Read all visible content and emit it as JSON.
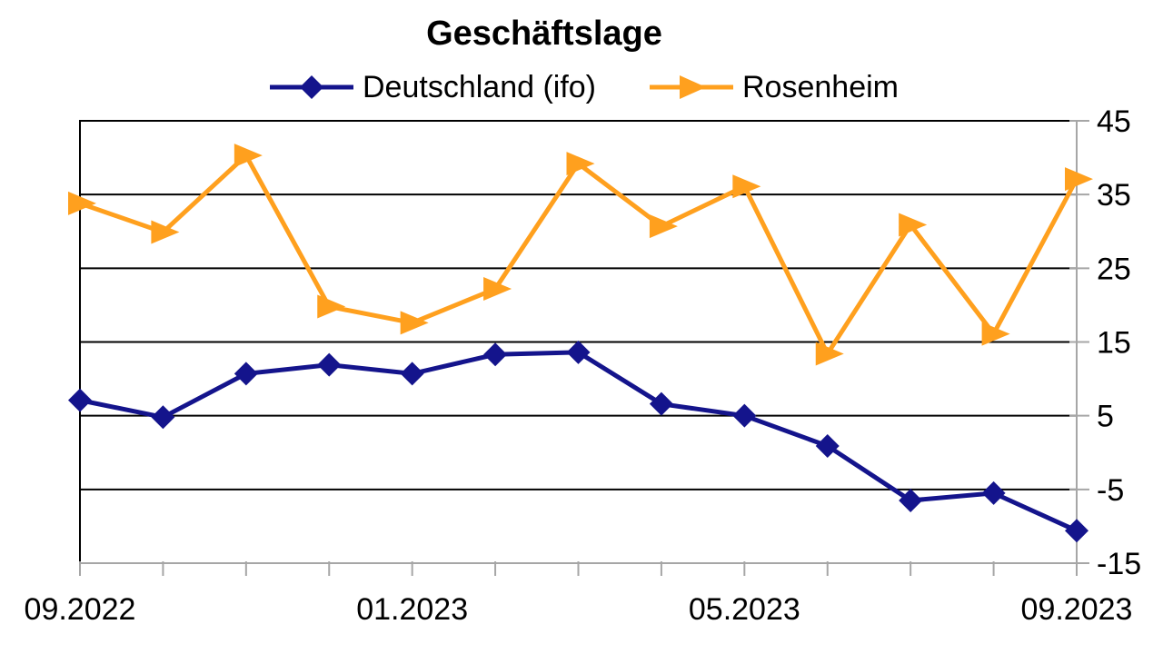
{
  "title": "Geschäftslage",
  "legend": {
    "position": "top",
    "items": [
      {
        "label": "Deutschland (ifo)",
        "marker": "diamond-icon",
        "color": "#14148C"
      },
      {
        "label": "Rosenheim",
        "marker": "triangle-right-icon",
        "color": "#FFA01E"
      }
    ]
  },
  "axes": {
    "y_side": "right",
    "y_tick_labels": [
      "45",
      "35",
      "25",
      "15",
      "5",
      "-5",
      "-15"
    ],
    "x_tick_labels_shown": [
      "09.2022",
      "01.2023",
      "05.2023",
      "09.2023"
    ]
  },
  "colors": {
    "series_deutschland": "#14148C",
    "series_rosenheim": "#FFA01E",
    "gridline": "#000000",
    "axis_gray": "#A6A6A6",
    "text": "#000000",
    "background": "#FFFFFF"
  },
  "chart_data": {
    "type": "line",
    "title": "Geschäftslage",
    "x": [
      "09.2022",
      "10.2022",
      "11.2022",
      "12.2022",
      "01.2023",
      "02.2023",
      "03.2023",
      "04.2023",
      "05.2023",
      "06.2023",
      "07.2023",
      "08.2023",
      "09.2023"
    ],
    "x_label_indices": [
      0,
      4,
      8,
      12
    ],
    "series": [
      {
        "name": "Deutschland (ifo)",
        "color": "#14148C",
        "marker": "diamond",
        "values": [
          7.1,
          4.8,
          10.7,
          11.9,
          10.7,
          13.3,
          13.6,
          6.6,
          5.0,
          0.9,
          -6.5,
          -5.5,
          -10.6
        ]
      },
      {
        "name": "Rosenheim",
        "color": "#FFA01E",
        "marker": "triangle-right",
        "values": [
          33.8,
          29.9,
          40.3,
          19.8,
          17.6,
          22.2,
          39.2,
          30.7,
          36.1,
          13.4,
          30.9,
          16.1,
          37.1
        ]
      }
    ],
    "ylim": [
      -15,
      45
    ],
    "yticks": [
      45,
      35,
      25,
      15,
      5,
      -5,
      -15
    ],
    "grid": "horizontal",
    "legend_position": "top"
  }
}
